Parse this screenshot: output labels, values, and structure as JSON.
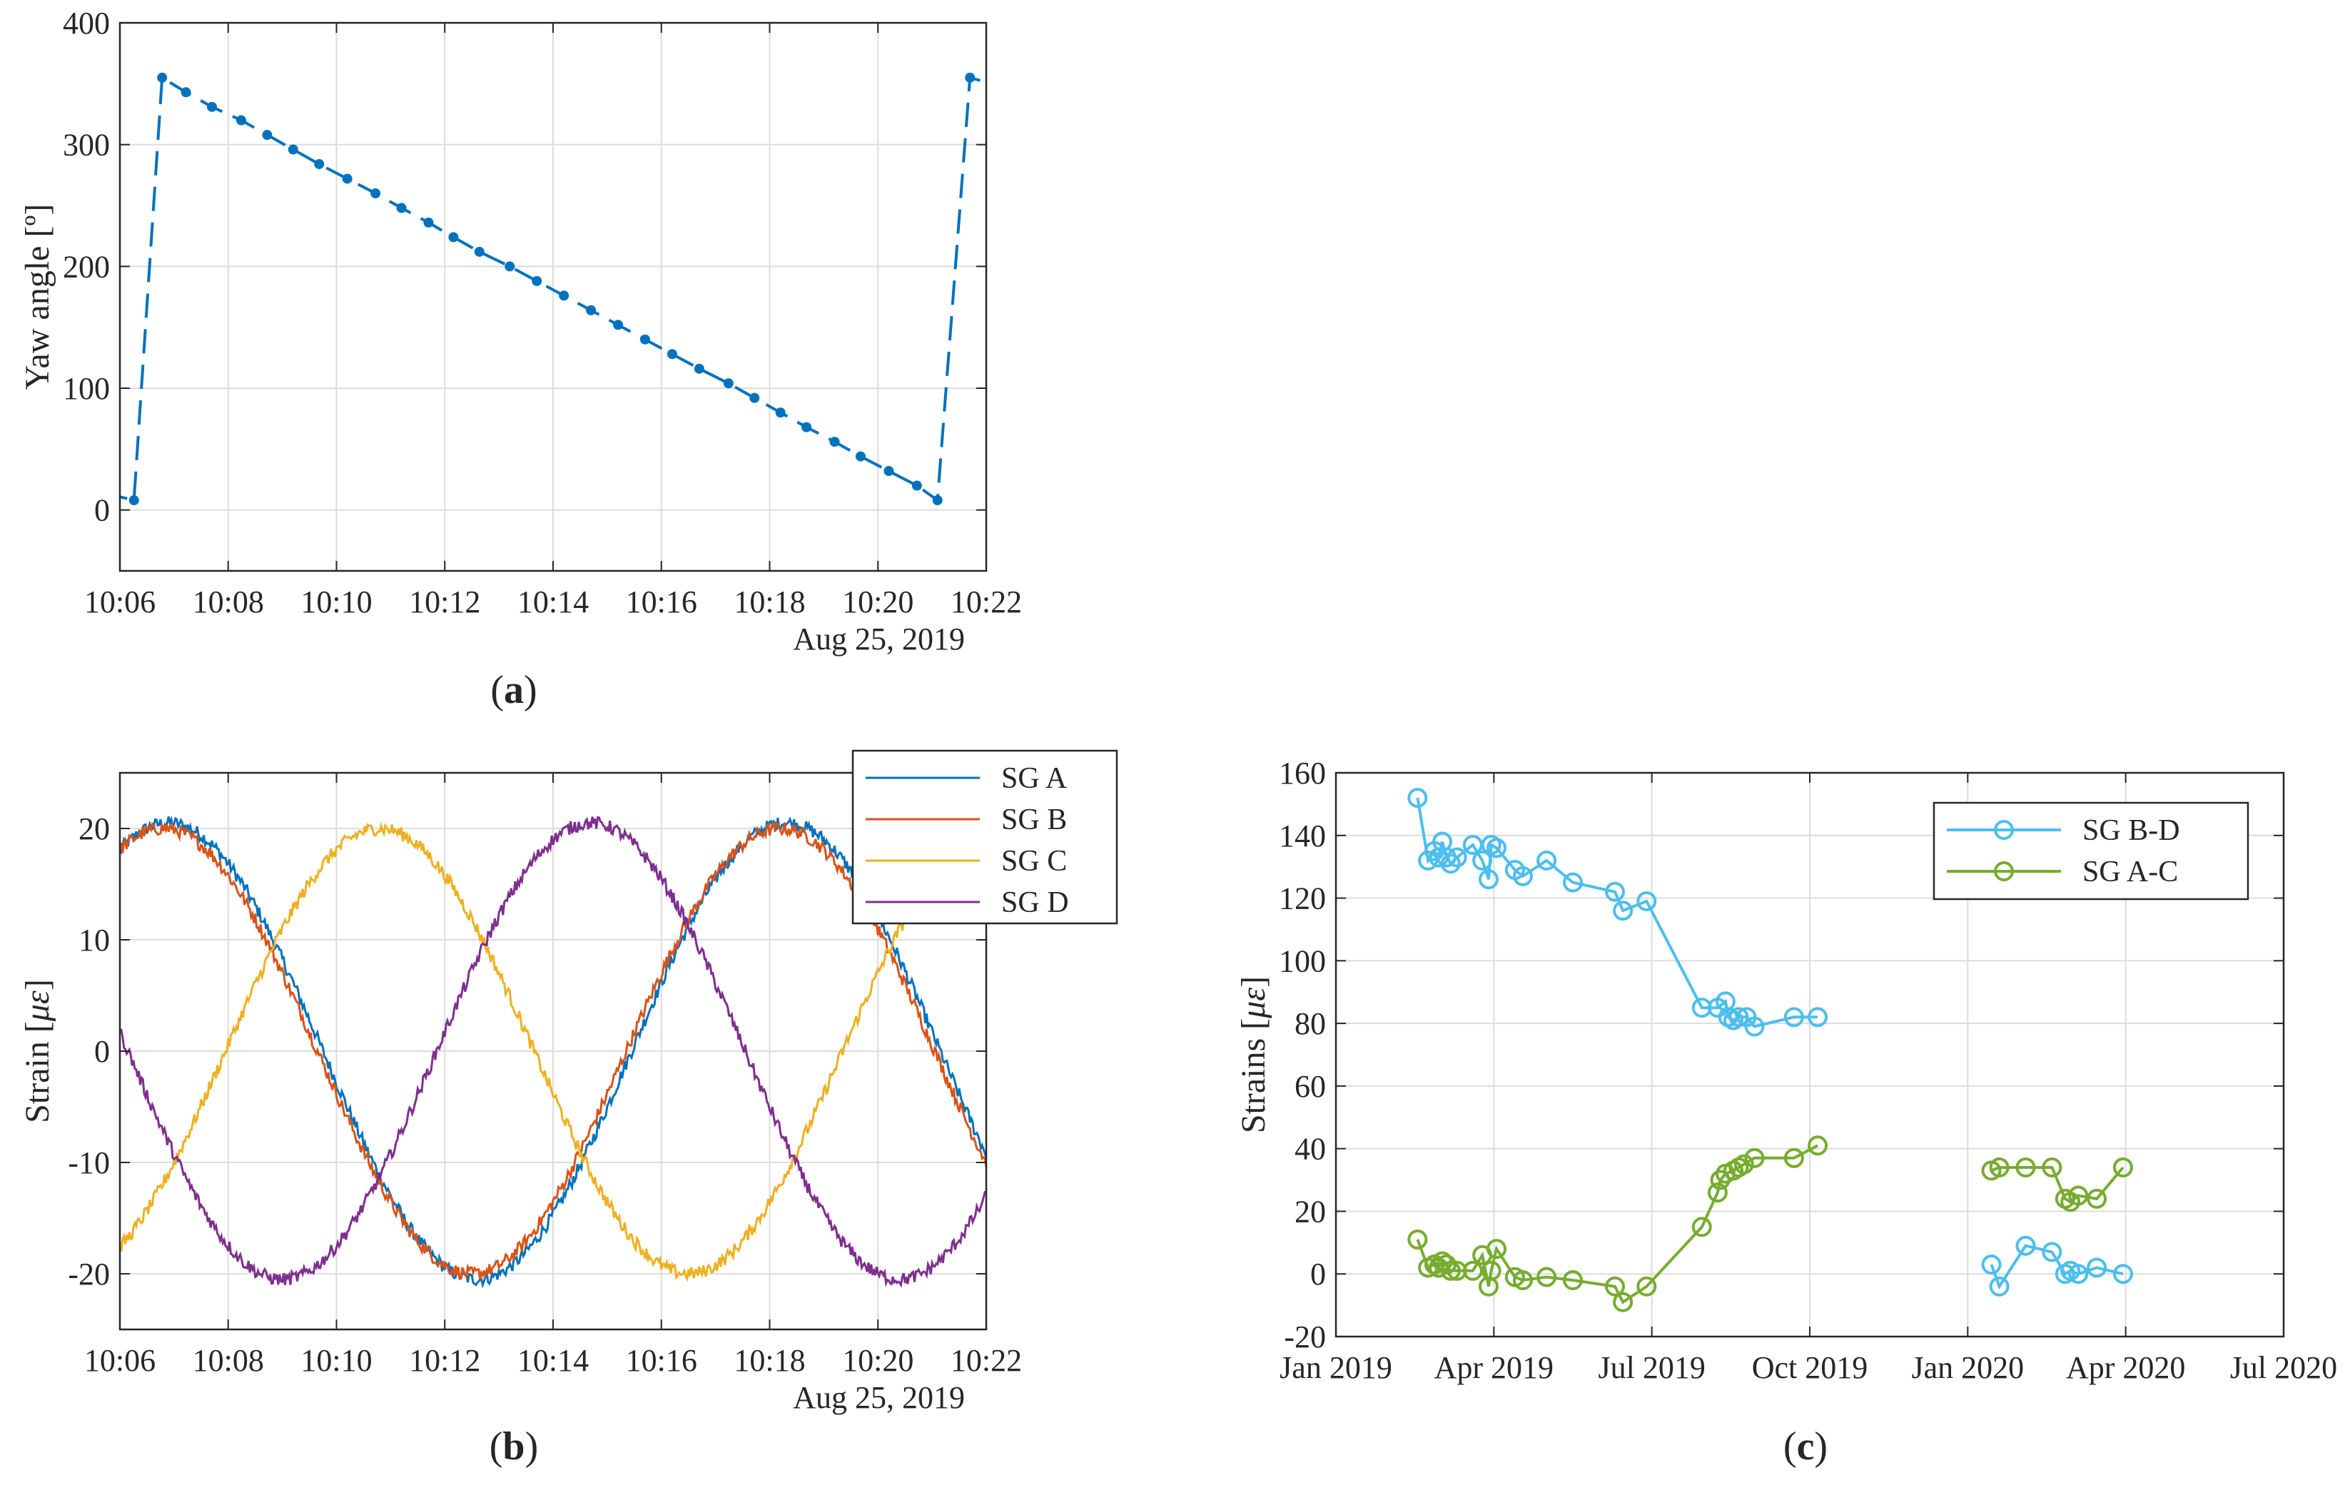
{
  "figure": {
    "captions": [
      {
        "open": "(",
        "letter": "a",
        "close": ")"
      },
      {
        "open": "(",
        "letter": "b",
        "close": ")"
      },
      {
        "open": "(",
        "letter": "c",
        "close": ")"
      }
    ]
  },
  "chart_data": [
    {
      "id": "a",
      "type": "line",
      "title": "",
      "xlabel": "",
      "date_label": "Aug 25, 2019",
      "ylabel": "Yaw angle [º]",
      "xlim": [
        0,
        16
      ],
      "ylim": [
        -50,
        400
      ],
      "xtick_values": [
        0,
        2,
        4,
        6,
        8,
        10,
        12,
        14,
        16
      ],
      "xtick_labels": [
        "10:06",
        "10:08",
        "10:10",
        "10:12",
        "10:14",
        "10:16",
        "10:18",
        "10:20",
        "10:22"
      ],
      "ytick_values": [
        0,
        100,
        200,
        300,
        400
      ],
      "ytick_labels": [
        "0",
        "100",
        "200",
        "300",
        "400"
      ],
      "grid": true,
      "series": [
        {
          "name": "Yaw angle",
          "color": "#0072BD",
          "line_style": "dashed",
          "marker": "dot",
          "x": [
            0.26,
            0.78,
            1.22,
            1.7,
            2.24,
            2.72,
            3.2,
            3.68,
            4.2,
            4.72,
            5.2,
            5.7,
            6.16,
            6.64,
            7.2,
            7.7,
            8.2,
            8.7,
            9.2,
            9.7,
            10.2,
            10.7,
            11.24,
            11.72,
            12.2,
            12.68,
            13.2,
            13.68,
            14.2,
            14.72,
            15.1,
            15.7
          ],
          "y": [
            8,
            355,
            343,
            331,
            320,
            308,
            296,
            284,
            272,
            260,
            248,
            236,
            224,
            212,
            200,
            188,
            176,
            164,
            152,
            140,
            128,
            116,
            104,
            92,
            80,
            68,
            56,
            44,
            32,
            20,
            8,
            355
          ]
        }
      ]
    },
    {
      "id": "b",
      "type": "line",
      "title": "",
      "xlabel": "",
      "date_label": "Aug 25, 2019",
      "ylabel_main": "Strain [",
      "ylabel_unit": "με",
      "ylabel_close": "]",
      "xlim": [
        0,
        16
      ],
      "ylim": [
        -25,
        25
      ],
      "xtick_values": [
        0,
        2,
        4,
        6,
        8,
        10,
        12,
        14,
        16
      ],
      "xtick_labels": [
        "10:06",
        "10:08",
        "10:10",
        "10:12",
        "10:14",
        "10:16",
        "10:18",
        "10:20",
        "10:22"
      ],
      "ytick_values": [
        -20,
        -10,
        0,
        10,
        20
      ],
      "ytick_labels": [
        "-20",
        "-10",
        "0",
        "10",
        "20"
      ],
      "grid": true,
      "legend_position": "top-right",
      "series": [
        {
          "name": "SG A",
          "color": "#0072BD",
          "amplitude": 20.5,
          "period": 11.4,
          "peak_time": 12.3
        },
        {
          "name": "SG B",
          "color": "#D95319",
          "amplitude": 20,
          "period": 11.4,
          "peak_time": 0.8
        },
        {
          "name": "SG C",
          "color": "#EDB120",
          "amplitude": 20,
          "period": 11.4,
          "peak_time": 4.8
        },
        {
          "name": "SG D",
          "color": "#7E2F8E",
          "amplitude": 20.5,
          "period": 11.4,
          "peak_time": 8.7
        }
      ]
    },
    {
      "id": "c",
      "type": "line",
      "title": "",
      "xlabel": "",
      "ylabel_main": "Strains [",
      "ylabel_unit": "με",
      "ylabel_close": "]",
      "xlim": [
        0,
        18
      ],
      "ylim": [
        -20,
        160
      ],
      "x_units": "months since Jan 2019",
      "xtick_values": [
        0,
        3,
        6,
        9,
        12,
        15,
        18
      ],
      "xtick_labels": [
        "Jan 2019",
        "Apr 2019",
        "Jul 2019",
        "Oct 2019",
        "Jan 2020",
        "Apr 2020",
        "Jul 2020"
      ],
      "ytick_values": [
        -20,
        0,
        20,
        40,
        60,
        80,
        100,
        120,
        140,
        160
      ],
      "ytick_labels": [
        "-20",
        "0",
        "20",
        "40",
        "60",
        "80",
        "100",
        "120",
        "140",
        "160"
      ],
      "grid": true,
      "legend_position": "top-right",
      "series": [
        {
          "name": "SG B-D",
          "color": "#4DBEEE",
          "marker": "open-circle",
          "segments": [
            {
              "x": [
                1.55,
                1.75,
                1.87,
                1.95,
                2.02,
                2.1,
                2.18,
                2.3,
                2.6,
                2.78,
                2.9,
                2.95,
                3.05,
                3.4,
                3.55,
                4.0,
                4.5,
                5.3,
                5.45,
                5.9,
                6.95,
                7.25,
                7.4,
                7.45,
                7.55,
                7.65,
                7.8,
                7.95,
                8.7,
                9.15
              ],
              "y": [
                152,
                132,
                135,
                133,
                138,
                133,
                131,
                133,
                137,
                132,
                126,
                137,
                136,
                129,
                127,
                132,
                125,
                122,
                116,
                119,
                85,
                85,
                87,
                82,
                81,
                82,
                82,
                79,
                82,
                82
              ]
            },
            {
              "x": [
                12.45,
                12.6,
                13.1,
                13.6,
                13.85,
                13.95,
                14.1,
                14.45,
                14.95
              ],
              "y": [
                3,
                -4,
                9,
                7,
                0,
                1,
                0,
                2,
                0
              ]
            }
          ]
        },
        {
          "name": "SG A-C",
          "color": "#77AC30",
          "marker": "open-circle",
          "segments": [
            {
              "x": [
                1.55,
                1.75,
                1.87,
                1.95,
                2.02,
                2.1,
                2.18,
                2.3,
                2.6,
                2.78,
                2.9,
                2.95,
                3.05,
                3.4,
                3.55,
                4.0,
                4.5,
                5.3,
                5.45,
                5.9,
                6.95,
                7.25,
                7.3,
                7.4,
                7.55,
                7.65,
                7.75,
                7.95,
                8.7,
                9.15
              ],
              "y": [
                11,
                2,
                3,
                2,
                4,
                3,
                1,
                1,
                1,
                6,
                -4,
                1,
                8,
                -1,
                -2,
                -1,
                -2,
                -4,
                -9,
                -4,
                15,
                26,
                30,
                32,
                33,
                34,
                35,
                37,
                37,
                41
              ]
            },
            {
              "x": [
                12.45,
                12.6,
                13.1,
                13.6,
                13.85,
                13.95,
                14.1,
                14.45,
                14.95
              ],
              "y": [
                33,
                34,
                34,
                34,
                24,
                23,
                25,
                24,
                34
              ]
            }
          ]
        }
      ]
    }
  ]
}
